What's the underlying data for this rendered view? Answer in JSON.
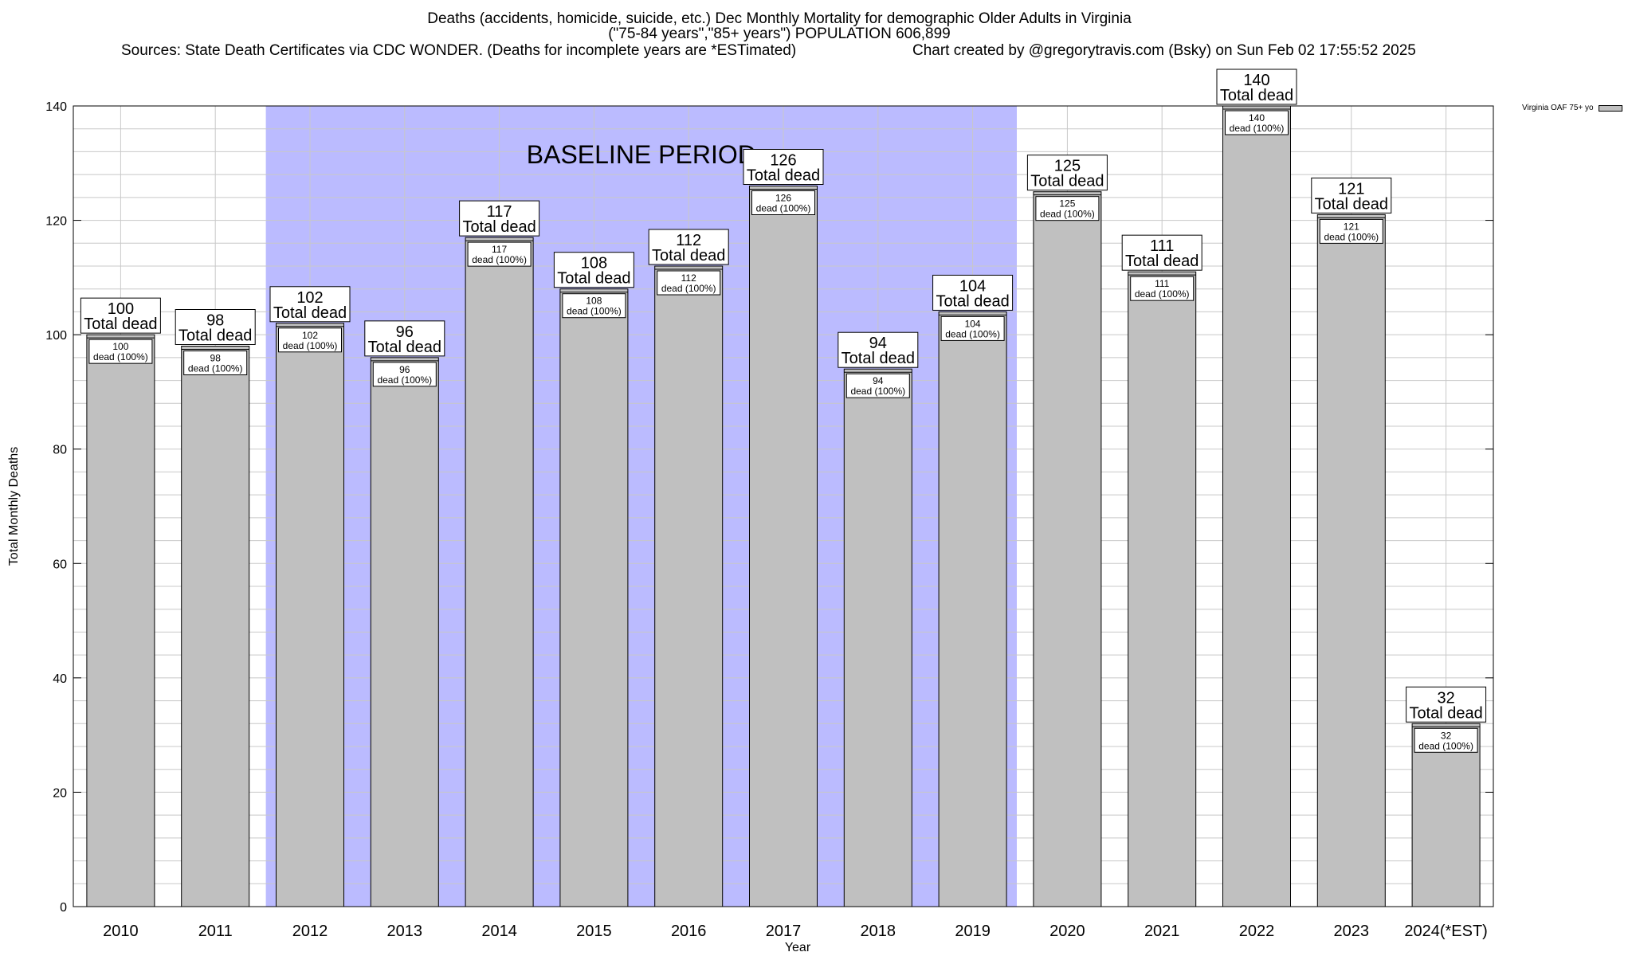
{
  "header": {
    "title_line1": "Deaths (accidents, homicide, suicide, etc.) Dec Monthly Mortality for demographic Older Adults in Virginia",
    "title_line2": "(\"75-84 years\",\"85+ years\") POPULATION 606,899",
    "sources": "Sources: State Death Certificates via CDC WONDER. (Deaths for incomplete years are *ESTimated)",
    "credit": "Chart created by @gregorytravis.com (Bsky) on Sun Feb 02 17:55:52 2025"
  },
  "legend": {
    "label": "Virginia OAF 75+ yo",
    "placement": "top-right"
  },
  "chart_data": {
    "type": "bar",
    "xlabel": "Year",
    "ylabel": "Total Monthly Deaths",
    "ylim": [
      0,
      140
    ],
    "yticks": [
      0,
      20,
      40,
      60,
      80,
      100,
      120,
      140
    ],
    "grid": true,
    "categories": [
      "2010",
      "2011",
      "2012",
      "2013",
      "2014",
      "2015",
      "2016",
      "2017",
      "2018",
      "2019",
      "2020",
      "2021",
      "2022",
      "2023",
      "2024(*EST)"
    ],
    "series": [
      {
        "name": "Virginia OAF 75+ yo",
        "values": [
          100,
          98,
          102,
          96,
          117,
          108,
          112,
          126,
          94,
          104,
          125,
          111,
          140,
          121,
          32
        ],
        "color": "#c0c0c0"
      }
    ],
    "total_label": "Total dead",
    "inner_label": "dead (100%)",
    "baseline": {
      "label": "BASELINE PERIOD",
      "from": "2012",
      "to": "2019",
      "color": "#bbbbff"
    }
  }
}
